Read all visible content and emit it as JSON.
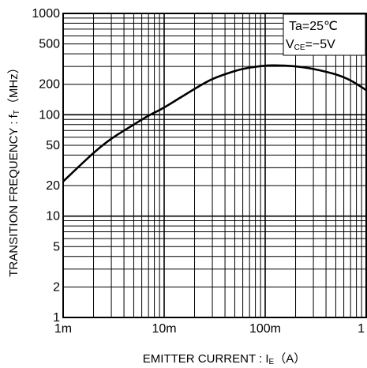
{
  "chart_data": {
    "type": "line",
    "title": "",
    "x_scale": "log",
    "y_scale": "log",
    "xlim": [
      0.001,
      1
    ],
    "ylim": [
      1,
      1000
    ],
    "grid": true,
    "xlabel": {
      "main": "EMITTER  CURRENT : I",
      "sub": "E",
      "unit": "（A）"
    },
    "ylabel": {
      "main": "TRANSITION  FREQUENCY : f",
      "sub": "T",
      "unit": "（MHz）"
    },
    "x_tick_labels": [
      "1m",
      "10m",
      "100m",
      "1"
    ],
    "y_tick_labels": [
      "1",
      "2",
      "5",
      "10",
      "20",
      "50",
      "100",
      "200",
      "500",
      "1000"
    ],
    "conditions": [
      {
        "text": "Ta=25℃"
      },
      {
        "prefix": "V",
        "sub": "CE",
        "suffix": "=−5V"
      }
    ],
    "series": [
      {
        "x": [
          0.001,
          0.002,
          0.003,
          0.005,
          0.007,
          0.01,
          0.02,
          0.03,
          0.05,
          0.07,
          0.1,
          0.12,
          0.15,
          0.2,
          0.3,
          0.5,
          0.7,
          1.0
        ],
        "y": [
          22,
          42,
          58,
          80,
          98,
          118,
          180,
          225,
          270,
          292,
          305,
          307,
          306,
          300,
          283,
          250,
          218,
          175
        ]
      }
    ],
    "line_color": "#000000"
  }
}
